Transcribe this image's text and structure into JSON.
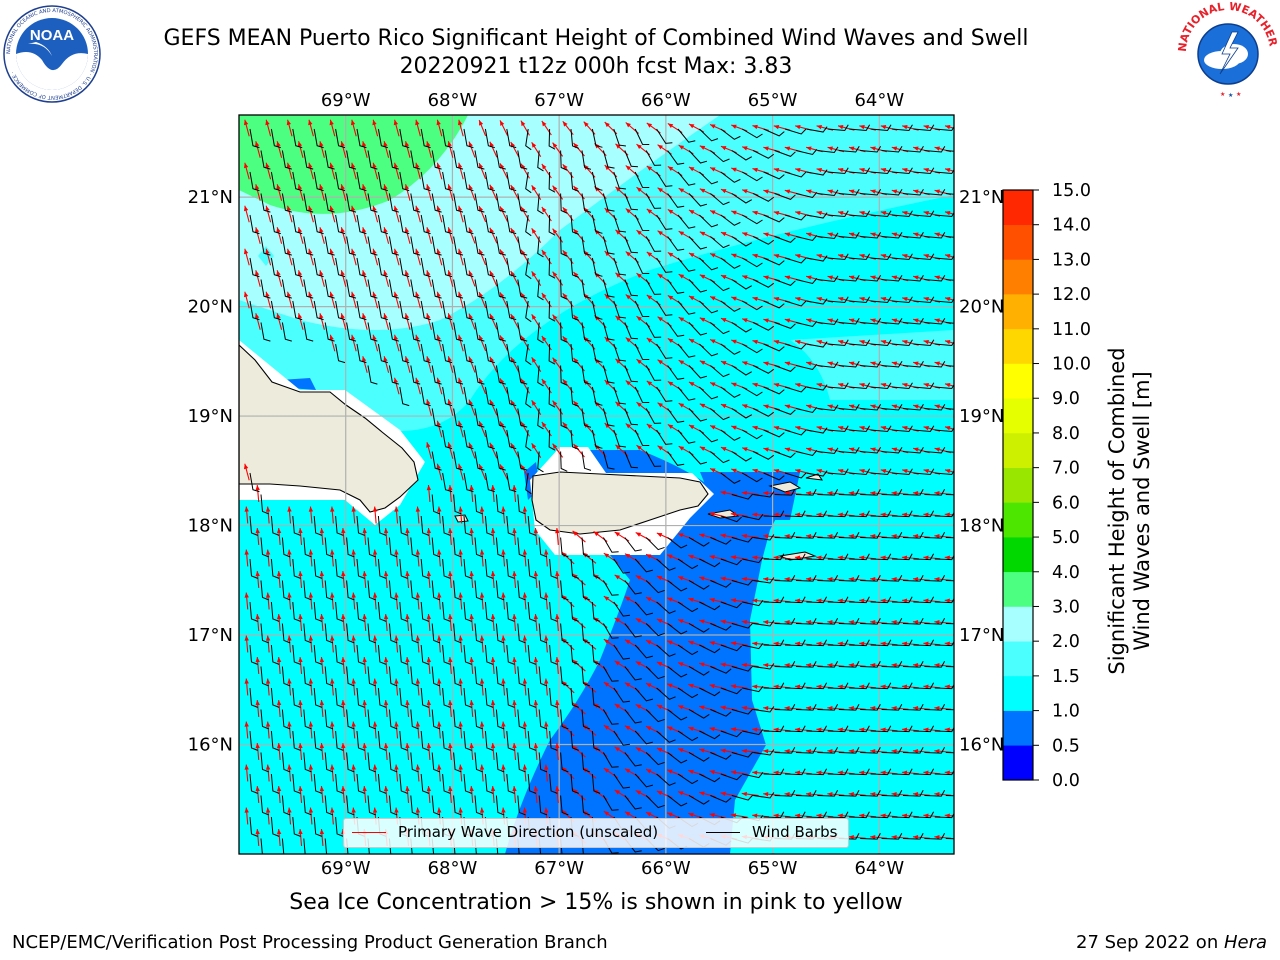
{
  "title": {
    "line1": "GEFS MEAN Puerto Rico Significant Height of Combined Wind Waves and Swell",
    "line2": "20220921 t12z 000h fcst   Max: 3.83"
  },
  "axes": {
    "lon_labels": [
      "69°W",
      "68°W",
      "67°W",
      "66°W",
      "65°W",
      "64°W"
    ],
    "lat_labels": [
      "21°N",
      "20°N",
      "19°N",
      "18°N",
      "17°N",
      "16°N"
    ],
    "lon_range": [
      -70.0,
      -63.3
    ],
    "lat_range": [
      15.0,
      21.75
    ]
  },
  "colorbar": {
    "label_line1": "Significant Height of Combined",
    "label_line2": "Wind Waves and Swell [m]",
    "ticks": [
      "0.0",
      "0.5",
      "1.0",
      "1.5",
      "2.0",
      "3.0",
      "4.0",
      "5.0",
      "6.0",
      "7.0",
      "8.0",
      "9.0",
      "10.0",
      "11.0",
      "12.0",
      "13.0",
      "14.0",
      "15.0"
    ],
    "colors": [
      "#0000ff",
      "#0073ff",
      "#00ffff",
      "#4cffff",
      "#a8ffff",
      "#4cff80",
      "#00d800",
      "#4ce600",
      "#99e600",
      "#ccf000",
      "#e6ff00",
      "#ffff00",
      "#ffd700",
      "#ffb000",
      "#ff8000",
      "#ff5000",
      "#ff2800"
    ]
  },
  "legend": {
    "wave_label": "Primary Wave Direction (unscaled)",
    "wave_color": "#ff0000",
    "barb_label": "Wind Barbs",
    "barb_color": "#000000"
  },
  "colors": {
    "land": "#edebdb",
    "coast": "#000000",
    "grid": "#b0b0b0"
  },
  "note": "Sea Ice Concentration > 15% is shown in pink to yellow",
  "footer": {
    "left": "NCEP/EMC/Verification Post Processing Product Generation Branch",
    "right_prefix": "27 Sep 2022 on ",
    "right_italic": "Hera"
  },
  "logos": {
    "noaa_text": "NOAA",
    "noaa_ring_text": "NATIONAL OCEANIC AND ATMOSPHERIC ADMINISTRATION · U.S. DEPARTMENT OF COMMERCE ·",
    "nws_ring_text": "NATIONAL WEATHER SERVICE"
  }
}
